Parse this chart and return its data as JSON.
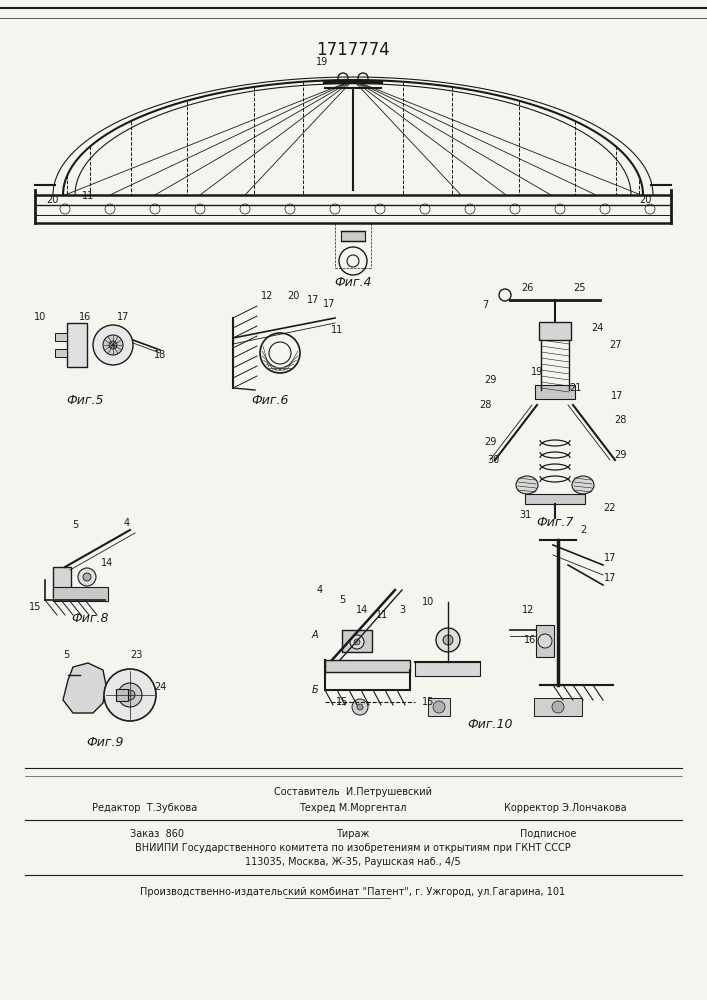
{
  "patent_number": "1717774",
  "background_color": "#f5f5f0",
  "line_color": "#1a1a1a",
  "fig_width": 7.07,
  "fig_height": 10.0,
  "footer_texts": {
    "editor_label": "Редактор  Т.Зубкова",
    "composer_label": "Составитель  И.Петрушевский",
    "techred_label": "Техред М.Моргентал",
    "corrector_label": "Корректор Э.Лончакова",
    "order_label": "Заказ  860",
    "tirazh_label": "Тираж",
    "podpisnoe_label": "Подписное",
    "vniiphi_line": "ВНИИПИ Государственного комитета по изобретениям и открытиям при ГКНТ СССР",
    "address_line": "113035, Москва, Ж-35, Раушская наб., 4/5",
    "publisher_line": "Производственно-издательский комбинат \"Патент\", г. Ужгород, ул.Гагарина, 101"
  }
}
